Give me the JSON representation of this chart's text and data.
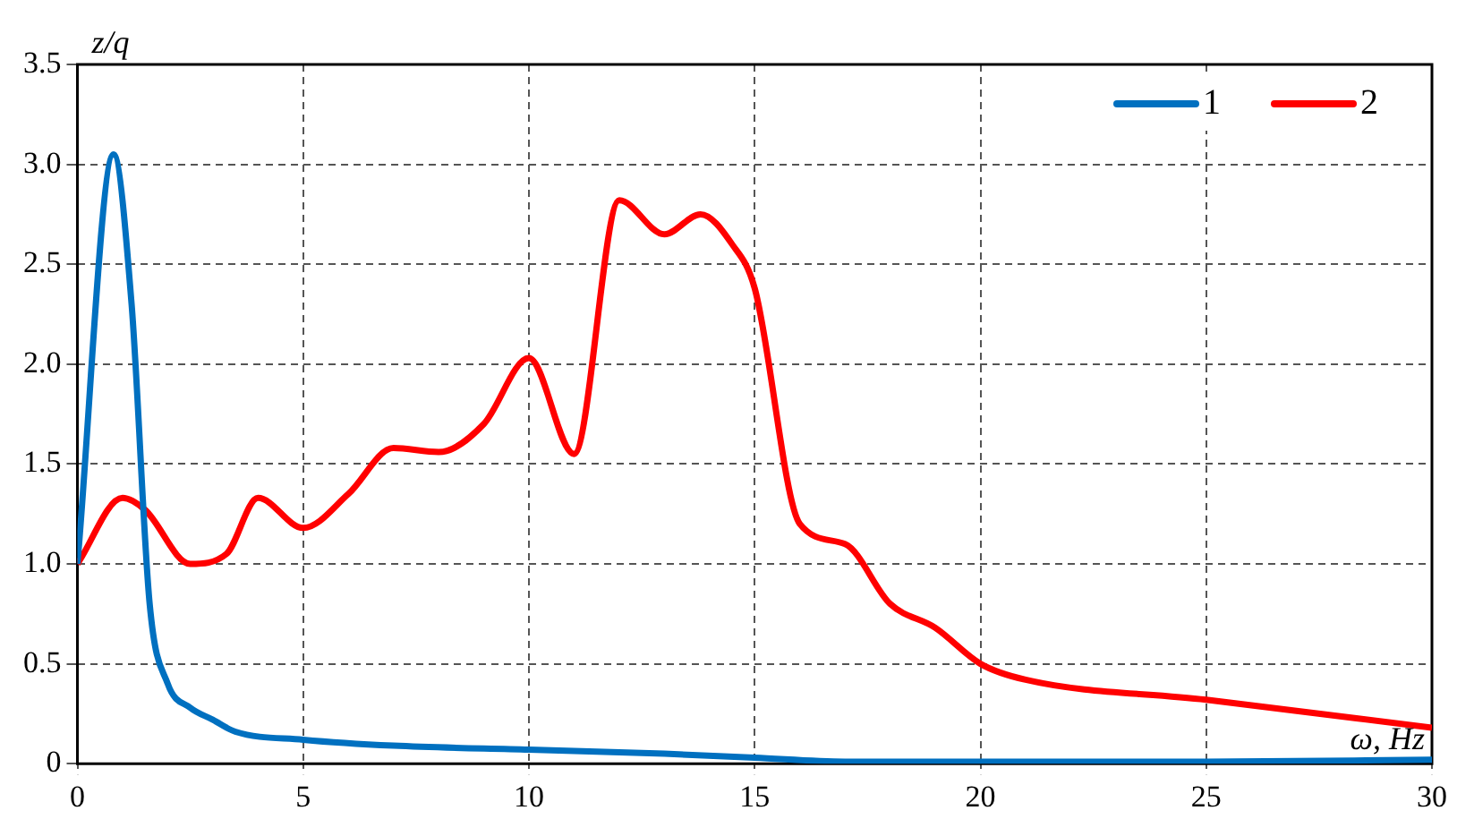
{
  "chart_data": {
    "type": "line",
    "xlabel": "ω, Hz",
    "ylabel": "z/q",
    "xlim": [
      0,
      30
    ],
    "xticks": [
      0,
      5,
      10,
      15,
      20,
      25,
      30
    ],
    "ylim": [
      0,
      3.5
    ],
    "yticks": [
      0,
      0.5,
      {
        "value": 1,
        "label": "1.0"
      },
      1.5,
      {
        "value": 2,
        "label": "2.0"
      },
      2.5,
      {
        "value": 3,
        "label": "3.0"
      },
      3.5
    ],
    "grid": true,
    "legend": "top right",
    "marker": "none",
    "line_style": "solid",
    "series": [
      {
        "name": "1",
        "color": "#0070c0",
        "x": [
          0,
          0.8,
          1.2,
          1.6,
          2,
          2.5,
          3,
          3.5,
          5,
          7,
          10,
          13,
          15,
          17,
          20,
          25,
          30
        ],
        "values": [
          1,
          3.05,
          2.3,
          0.8,
          0.4,
          0.28,
          0.22,
          0.16,
          0.12,
          0.09,
          0.07,
          0.05,
          0.03,
          0.01,
          0.01,
          0.01,
          0.02
        ]
      },
      {
        "name": "2",
        "color": "#ff0000",
        "x": [
          0,
          1,
          1.5,
          2.5,
          3.3,
          4,
          5,
          6,
          7,
          8,
          9,
          10,
          11,
          12,
          13,
          13.8,
          14.5,
          15,
          16,
          17,
          18,
          19,
          20,
          21,
          25,
          30
        ],
        "values": [
          1,
          1.33,
          1.27,
          1.0,
          1.05,
          1.33,
          1.18,
          1.35,
          1.58,
          1.56,
          1.7,
          2.03,
          1.55,
          2.82,
          2.65,
          2.75,
          2.6,
          2.38,
          1.2,
          1.1,
          0.8,
          0.68,
          0.5,
          0.42,
          0.32,
          0.18
        ]
      }
    ]
  }
}
